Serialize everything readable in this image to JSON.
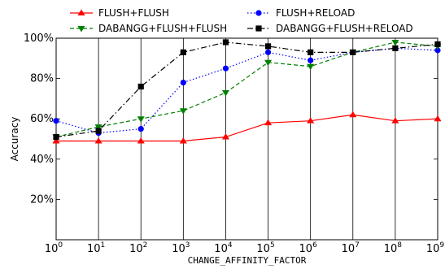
{
  "chart_data": {
    "type": "line",
    "xlabel": "CHANGE_AFFINITY_FACTOR",
    "ylabel": "Accuracy",
    "x_scale": "log10",
    "xlim": [
      1,
      1000000000
    ],
    "ylim": [
      0,
      100
    ],
    "x_tick_exponents": [
      "0",
      "1",
      "2",
      "3",
      "4",
      "5",
      "6",
      "7",
      "8",
      "9"
    ],
    "y_ticks": [
      "20%",
      "40%",
      "60%",
      "80%",
      "100%"
    ],
    "grid": "vertical",
    "legend_position": "top",
    "x": [
      1,
      10,
      100,
      1000,
      10000,
      100000,
      1000000,
      10000000,
      100000000,
      1000000000
    ],
    "series": [
      {
        "name": "FLUSH+FLUSH",
        "color": "#ff0000",
        "marker": "triangle-up",
        "dash": "solid",
        "values": [
          49,
          49,
          49,
          49,
          51,
          58,
          59,
          62,
          59,
          60
        ]
      },
      {
        "name": "FLUSH+RELOAD",
        "color": "#0000ff",
        "marker": "circle",
        "dash": "dotted",
        "values": [
          59,
          53,
          55,
          78,
          85,
          93,
          89,
          93,
          95,
          94
        ]
      },
      {
        "name": "DABANGG+FLUSH+FLUSH",
        "color": "#008000",
        "marker": "triangle-down",
        "dash": "dashed",
        "values": [
          51,
          56,
          60,
          64,
          73,
          88,
          86,
          93,
          98,
          96
        ]
      },
      {
        "name": "DABANGG+FLUSH+RELOAD",
        "color": "#000000",
        "marker": "square",
        "dash": "dashdot",
        "values": [
          51,
          54,
          76,
          93,
          98,
          96,
          93,
          93,
          95,
          97
        ]
      }
    ]
  }
}
